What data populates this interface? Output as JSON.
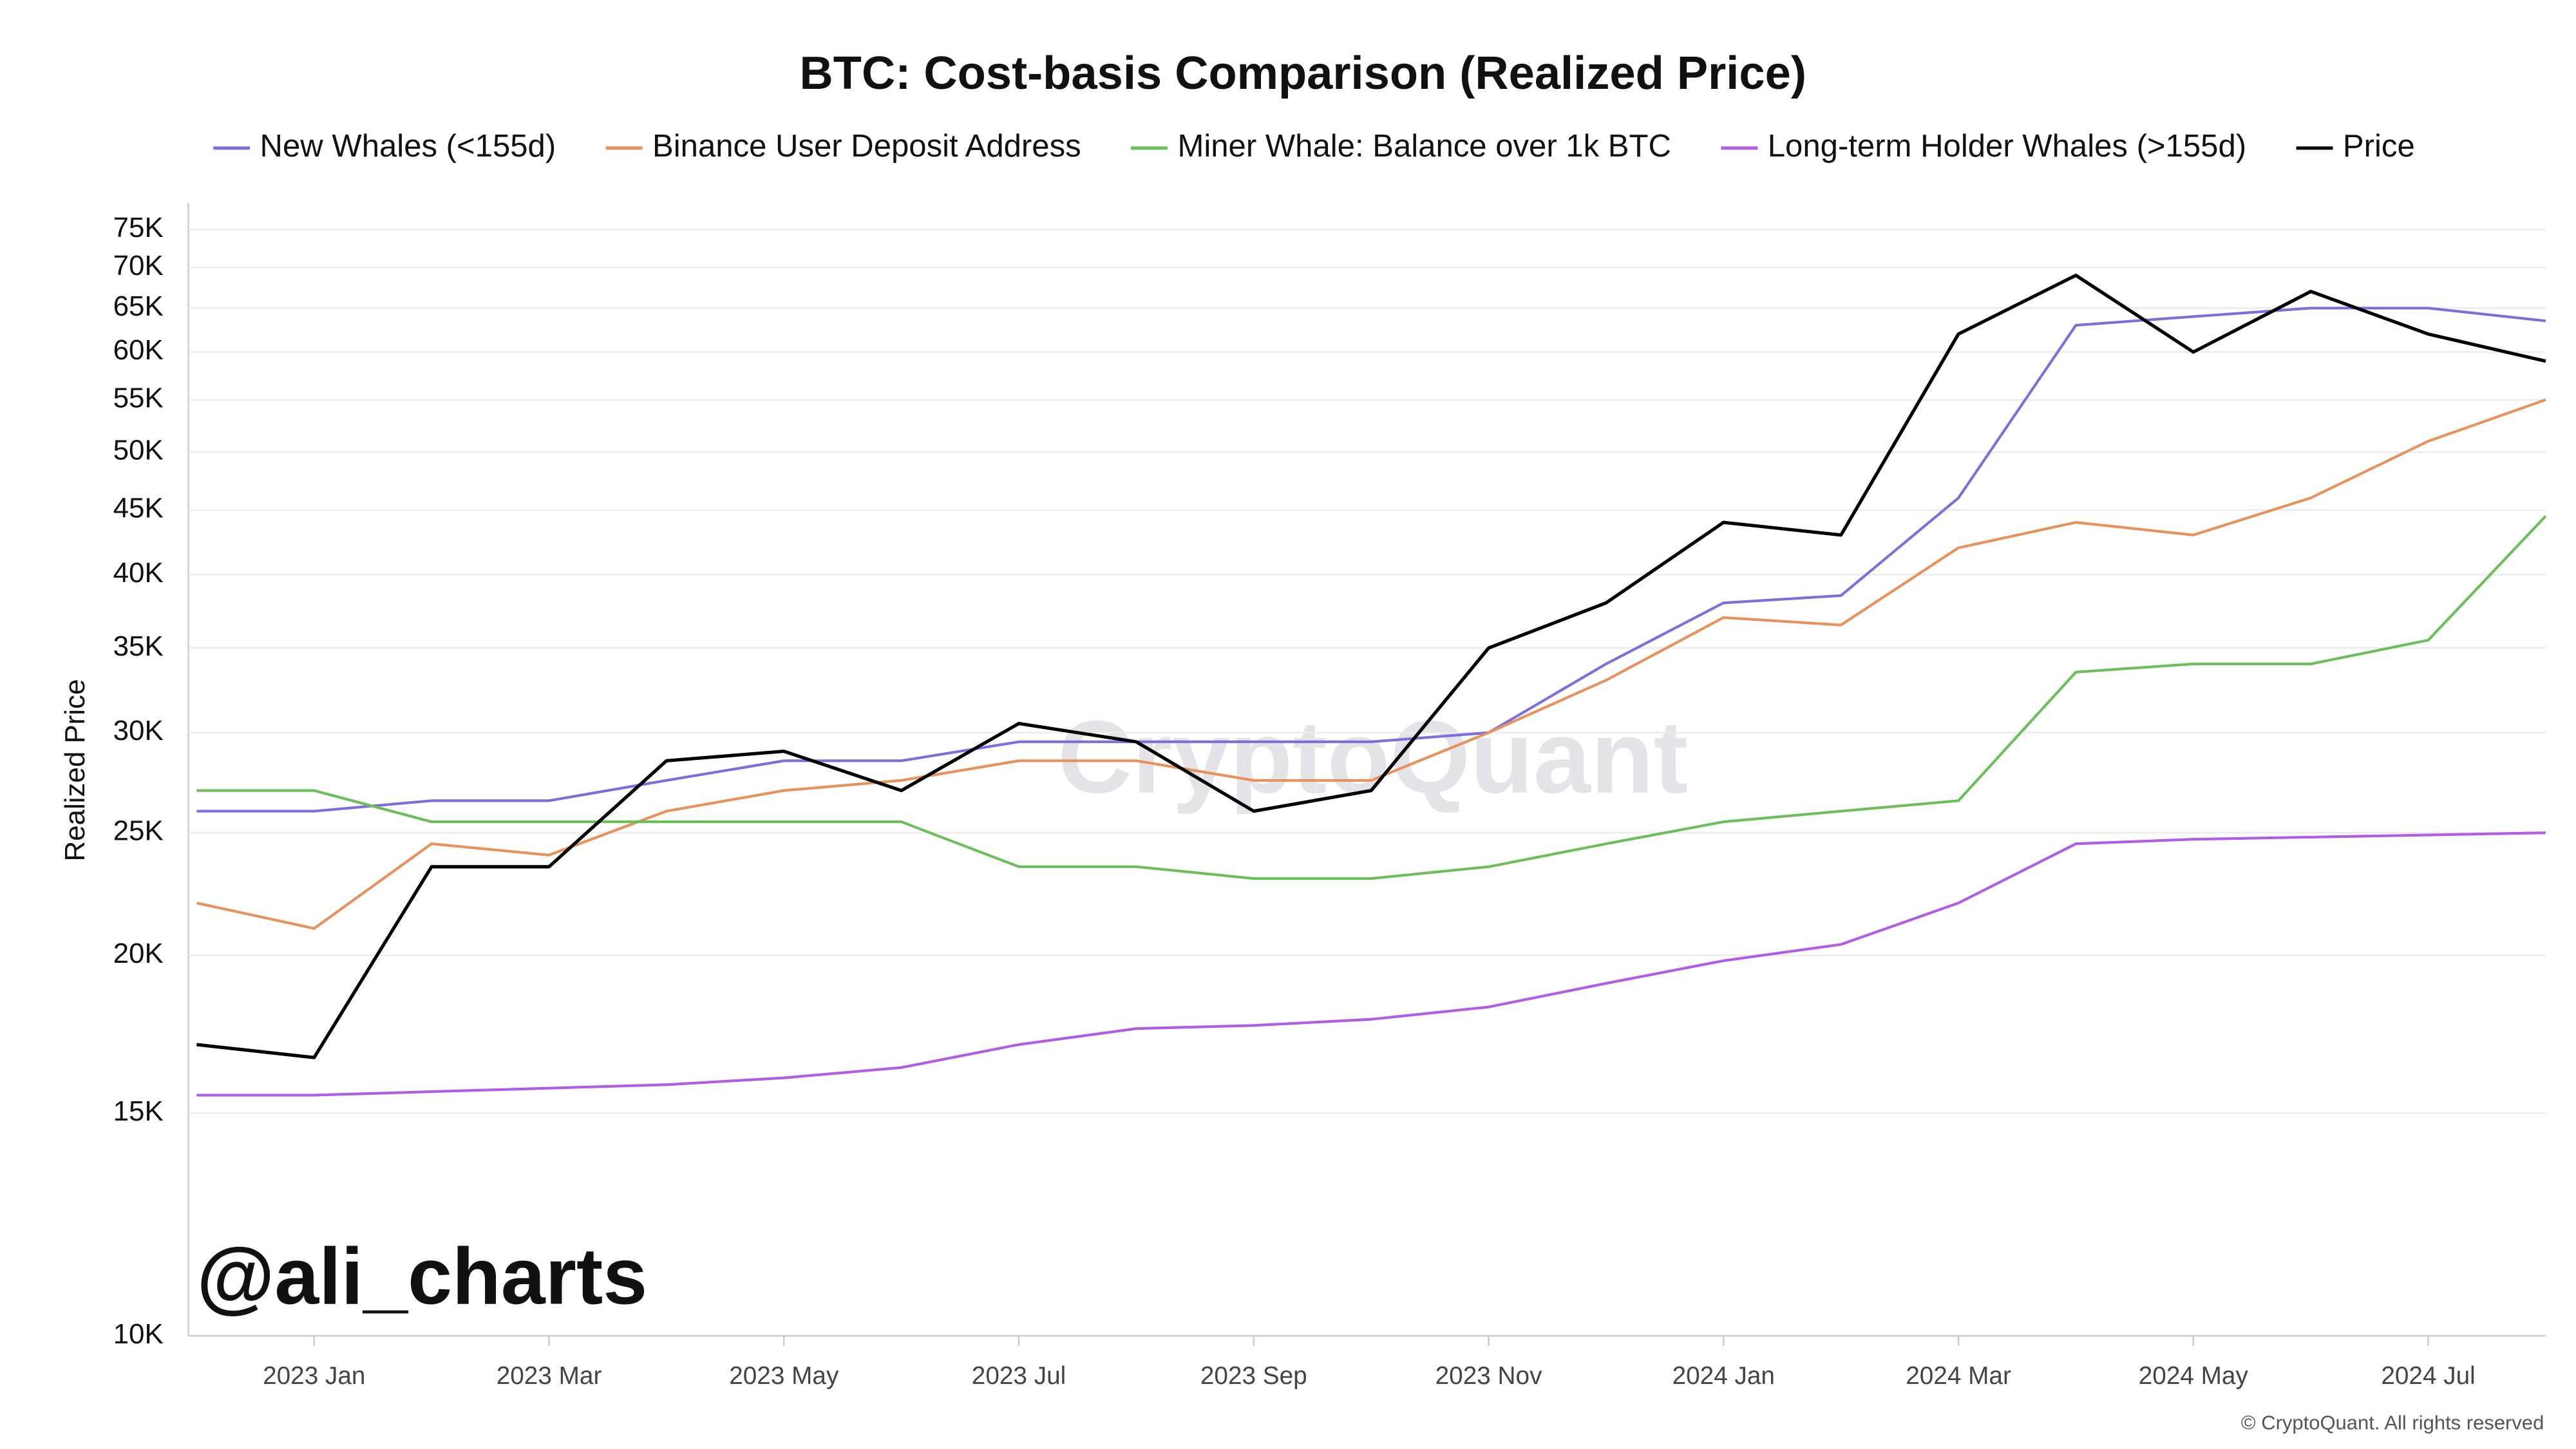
{
  "chart_data": {
    "type": "line",
    "title": "BTC: Cost-basis Comparison (Realized Price)",
    "y_label": "Realized Price",
    "watermark": "CryptoQuant",
    "handle": "@ali_charts",
    "copyright": "© CryptoQuant. All rights reserved",
    "y_scale": "log",
    "grid": true,
    "legend": "top",
    "categories": [
      null,
      "2023 Jan",
      null,
      "2023 Mar",
      null,
      "2023 May",
      null,
      "2023 Jul",
      null,
      "2023 Sep",
      null,
      "2023 Nov",
      null,
      "2024 Jan",
      null,
      "2024 Mar",
      null,
      "2024 May",
      null,
      "2024 Jul",
      null
    ],
    "series": [
      {
        "name": "New Whales (<155d)",
        "color": "#7b6fe0",
        "values": [
          26000,
          26000,
          26500,
          26500,
          27500,
          28500,
          28500,
          29500,
          29500,
          29500,
          29500,
          30000,
          34000,
          38000,
          38500,
          46000,
          63000,
          64000,
          65000,
          65000,
          63500
        ]
      },
      {
        "name": "Binance User Deposit Address",
        "color": "#e8915a",
        "values": [
          22000,
          21000,
          24500,
          24000,
          26000,
          27000,
          27500,
          28500,
          28500,
          27500,
          27500,
          30000,
          33000,
          37000,
          36500,
          42000,
          44000,
          43000,
          46000,
          51000,
          55000
        ]
      },
      {
        "name": "Miner Whale: Balance over 1k BTC",
        "color": "#6bbf59",
        "values": [
          27000,
          27000,
          25500,
          25500,
          25500,
          25500,
          25500,
          23500,
          23500,
          23000,
          23000,
          23500,
          24500,
          25500,
          26000,
          26500,
          33500,
          34000,
          34000,
          35500,
          44500
        ]
      },
      {
        "name": "Long-term Holder Whales (>155d)",
        "color": "#b25bea",
        "values": [
          15500,
          15500,
          15600,
          15700,
          15800,
          16000,
          16300,
          17000,
          17500,
          17600,
          17800,
          18200,
          19000,
          19800,
          20400,
          22000,
          24500,
          24700,
          24800,
          24900,
          25000
        ]
      },
      {
        "name": "Price",
        "color": "#000000",
        "values": [
          17000,
          16600,
          23500,
          23500,
          28500,
          29000,
          27000,
          30500,
          29500,
          26000,
          27000,
          35000,
          38000,
          44000,
          43000,
          62000,
          69000,
          60000,
          67000,
          62000,
          59000
        ]
      }
    ],
    "ylim": [
      10000,
      78000
    ],
    "yticks": [
      {
        "value": 10000,
        "label": "10K"
      },
      {
        "value": 15000,
        "label": "15K"
      },
      {
        "value": 20000,
        "label": "20K"
      },
      {
        "value": 25000,
        "label": "25K"
      },
      {
        "value": 30000,
        "label": "30K"
      },
      {
        "value": 35000,
        "label": "35K"
      },
      {
        "value": 40000,
        "label": "40K"
      },
      {
        "value": 45000,
        "label": "45K"
      },
      {
        "value": 50000,
        "label": "50K"
      },
      {
        "value": 55000,
        "label": "55K"
      },
      {
        "value": 60000,
        "label": "60K"
      },
      {
        "value": 65000,
        "label": "65K"
      },
      {
        "value": 70000,
        "label": "70K"
      },
      {
        "value": 75000,
        "label": "75K"
      }
    ]
  }
}
